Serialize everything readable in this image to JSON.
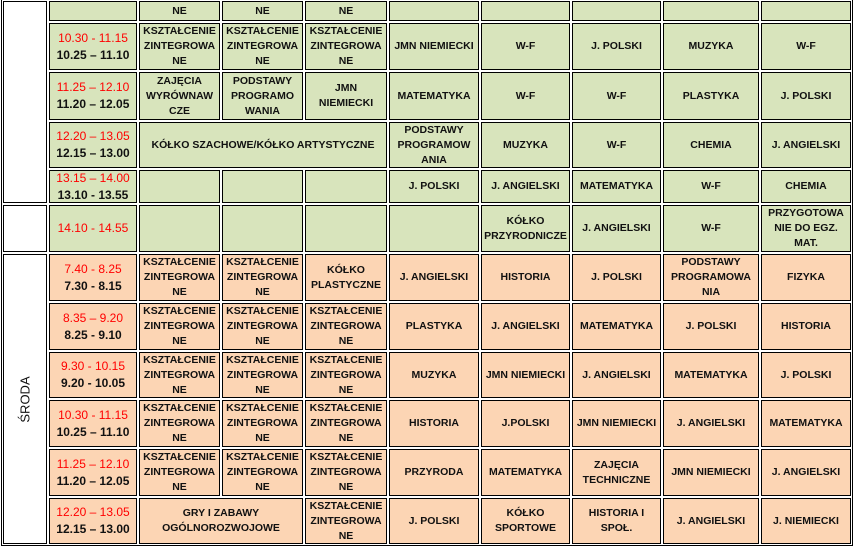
{
  "colors": {
    "green_block": "#d8e4bc",
    "orange_block": "#fcd5b4",
    "alt_time": "#ff0000"
  },
  "days": [
    {
      "label": "",
      "rows": 5,
      "color": "green"
    },
    {
      "label": "",
      "rows": 1,
      "color": "green"
    },
    {
      "label": "ŚRODA",
      "rows": 6,
      "color": "orange"
    }
  ],
  "rows": [
    {
      "time_red": "",
      "time_black": "",
      "color": "green",
      "cells": [
        {
          "text": "NE",
          "span": 1
        },
        {
          "text": "NE",
          "span": 1
        },
        {
          "text": "NE",
          "span": 1
        },
        {
          "text": "",
          "span": 1
        },
        {
          "text": "",
          "span": 1
        },
        {
          "text": "",
          "span": 1
        },
        {
          "text": "",
          "span": 1
        },
        {
          "text": "",
          "span": 1
        }
      ]
    },
    {
      "time_red": "10.30 - 11.15",
      "time_black": "10.25 – 11.10",
      "color": "green",
      "cells": [
        {
          "text": "KSZTAŁCENIE\nZINTEGROWA\nNE",
          "span": 1
        },
        {
          "text": "KSZTAŁCENIE\nZINTEGROWA\nNE",
          "span": 1
        },
        {
          "text": "KSZTAŁCENIE\nZINTEGROWA\nNE",
          "span": 1
        },
        {
          "text": "JMN NIEMIECKI",
          "span": 1
        },
        {
          "text": "W-F",
          "span": 1
        },
        {
          "text": "J. POLSKI",
          "span": 1
        },
        {
          "text": "MUZYKA",
          "span": 1
        },
        {
          "text": "W-F",
          "span": 1
        }
      ]
    },
    {
      "time_red": "11.25 – 12.10",
      "time_black": "11.20 – 12.05",
      "color": "green",
      "cells": [
        {
          "text": "ZAJĘCIA\nWYRÓWNAW\nCZE",
          "span": 1
        },
        {
          "text": "PODSTAWY\nPROGRAMO\nWANIA",
          "span": 1
        },
        {
          "text": "JMN\nNIEMIECKI",
          "span": 1
        },
        {
          "text": "MATEMATYKA",
          "span": 1
        },
        {
          "text": "W-F",
          "span": 1
        },
        {
          "text": "W-F",
          "span": 1
        },
        {
          "text": "PLASTYKA",
          "span": 1
        },
        {
          "text": "J. POLSKI",
          "span": 1
        }
      ]
    },
    {
      "time_red": "12.20 – 13.05",
      "time_black": "12.15 – 13.00",
      "color": "green",
      "cells": [
        {
          "text": "KÓŁKO SZACHOWE/KÓŁKO ARTYSTYCZNE",
          "span": 3
        },
        {
          "text": "PODSTAWY\nPROGRAMOW\nANIA",
          "span": 1
        },
        {
          "text": "MUZYKA",
          "span": 1
        },
        {
          "text": "W-F",
          "span": 1
        },
        {
          "text": "CHEMIA",
          "span": 1
        },
        {
          "text": "J. ANGIELSKI",
          "span": 1
        }
      ]
    },
    {
      "time_red": "13.15 – 14.00",
      "time_black": "13.10 - 13.55",
      "color": "green",
      "cells": [
        {
          "text": "",
          "span": 1
        },
        {
          "text": "",
          "span": 1
        },
        {
          "text": "",
          "span": 1
        },
        {
          "text": "J. POLSKI",
          "span": 1
        },
        {
          "text": "J. ANGIELSKI",
          "span": 1
        },
        {
          "text": "MATEMATYKA",
          "span": 1
        },
        {
          "text": "W-F",
          "span": 1
        },
        {
          "text": "CHEMIA",
          "span": 1
        }
      ]
    },
    {
      "time_red": "14.10 - 14.55",
      "time_black": "",
      "color": "green",
      "cells": [
        {
          "text": "",
          "span": 1
        },
        {
          "text": "",
          "span": 1
        },
        {
          "text": "",
          "span": 1
        },
        {
          "text": "",
          "span": 1
        },
        {
          "text": "KÓŁKO\nPRZYRODNICZE",
          "span": 1
        },
        {
          "text": "J. ANGIELSKI",
          "span": 1
        },
        {
          "text": "W-F",
          "span": 1
        },
        {
          "text": "PRZYGOTOWA\nNIE DO EGZ.\nMAT.",
          "span": 1
        }
      ]
    },
    {
      "time_red": "7.40 - 8.25",
      "time_black": "7.30 - 8.15",
      "color": "orange",
      "cells": [
        {
          "text": "KSZTAŁCENIE\nZINTEGROWA\nNE",
          "span": 1
        },
        {
          "text": "KSZTAŁCENIE\nZINTEGROWA\nNE",
          "span": 1
        },
        {
          "text": "KÓŁKO\nPLASTYCZNE",
          "span": 1
        },
        {
          "text": "J. ANGIELSKI",
          "span": 1
        },
        {
          "text": "HISTORIA",
          "span": 1
        },
        {
          "text": "J. POLSKI",
          "span": 1
        },
        {
          "text": "PODSTAWY\nPROGRAMOWA\nNIA",
          "span": 1
        },
        {
          "text": "FIZYKA",
          "span": 1
        }
      ]
    },
    {
      "time_red": "8.35 – 9.20",
      "time_black": "8.25 - 9.10",
      "color": "orange",
      "cells": [
        {
          "text": "KSZTAŁCENIE\nZINTEGROWA\nNE",
          "span": 1
        },
        {
          "text": "KSZTAŁCENIE\nZINTEGROWA\nNE",
          "span": 1
        },
        {
          "text": "KSZTAŁCENIE\nZINTEGROWA\nNE",
          "span": 1
        },
        {
          "text": "PLASTYKA",
          "span": 1
        },
        {
          "text": "J. ANGIELSKI",
          "span": 1
        },
        {
          "text": "MATEMATYKA",
          "span": 1
        },
        {
          "text": "J. POLSKI",
          "span": 1
        },
        {
          "text": "HISTORIA",
          "span": 1
        }
      ]
    },
    {
      "time_red": "9.30 - 10.15",
      "time_black": "9.20 - 10.05",
      "color": "orange",
      "cells": [
        {
          "text": "KSZTAŁCENIE\nZINTEGROWA\nNE",
          "span": 1
        },
        {
          "text": "KSZTAŁCENIE\nZINTEGROWA\nNE",
          "span": 1
        },
        {
          "text": "KSZTAŁCENIE\nZINTEGROWA\nNE",
          "span": 1
        },
        {
          "text": "MUZYKA",
          "span": 1
        },
        {
          "text": "JMN NIEMIECKI",
          "span": 1
        },
        {
          "text": "J. ANGIELSKI",
          "span": 1
        },
        {
          "text": "MATEMATYKA",
          "span": 1
        },
        {
          "text": "J. POLSKI",
          "span": 1
        }
      ]
    },
    {
      "time_red": "10.30 - 11.15",
      "time_black": "10.25 – 11.10",
      "color": "orange",
      "cells": [
        {
          "text": "KSZTAŁCENIE\nZINTEGROWA\nNE",
          "span": 1
        },
        {
          "text": "KSZTAŁCENIE\nZINTEGROWA\nNE",
          "span": 1
        },
        {
          "text": "KSZTAŁCENIE\nZINTEGROWA\nNE",
          "span": 1
        },
        {
          "text": "HISTORIA",
          "span": 1
        },
        {
          "text": "J.POLSKI",
          "span": 1
        },
        {
          "text": "JMN NIEMIECKI",
          "span": 1
        },
        {
          "text": "J. ANGIELSKI",
          "span": 1
        },
        {
          "text": "MATEMATYKA",
          "span": 1
        }
      ]
    },
    {
      "time_red": "11.25 – 12.10",
      "time_black": "11.20 – 12.05",
      "color": "orange",
      "cells": [
        {
          "text": "KSZTAŁCENIE\nZINTEGROWA\nNE",
          "span": 1
        },
        {
          "text": "KSZTAŁCENIE\nZINTEGROWA\nNE",
          "span": 1
        },
        {
          "text": "KSZTAŁCENIE\nZINTEGROWA\nNE",
          "span": 1
        },
        {
          "text": "PRZYRODA",
          "span": 1
        },
        {
          "text": "MATEMATYKA",
          "span": 1
        },
        {
          "text": "ZAJĘCIA\nTECHNICZNE",
          "span": 1
        },
        {
          "text": "JMN NIEMIECKI",
          "span": 1
        },
        {
          "text": "J. ANGIELSKI",
          "span": 1
        }
      ]
    },
    {
      "time_red": "12.20 – 13.05",
      "time_black": "12.15 – 13.00",
      "color": "orange",
      "cells": [
        {
          "text": "GRY I ZABAWY\nOGÓLNOROZWOJOWE",
          "span": 2
        },
        {
          "text": "KSZTAŁCENIE\nZINTEGROWA\nNE",
          "span": 1
        },
        {
          "text": "J. POLSKI",
          "span": 1
        },
        {
          "text": "KÓŁKO\nSPORTOWE",
          "span": 1
        },
        {
          "text": "HISTORIA I\nSPOŁ.",
          "span": 1
        },
        {
          "text": "J. ANGIELSKI",
          "span": 1
        },
        {
          "text": "J. NIEMIECKI",
          "span": 1
        }
      ]
    }
  ]
}
